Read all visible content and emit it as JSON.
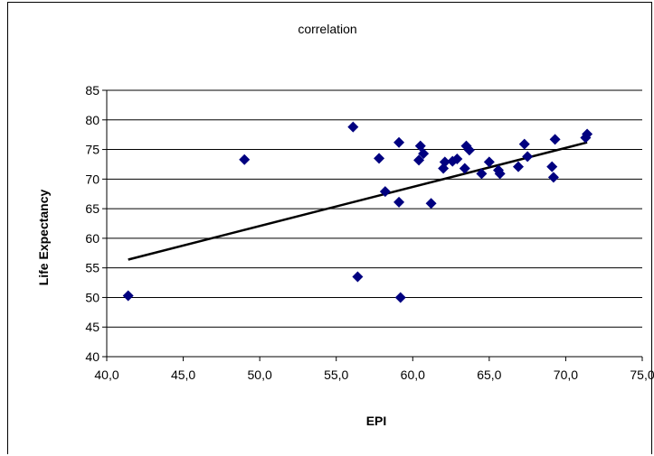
{
  "chart_data": {
    "type": "scatter",
    "title": "correlation",
    "xlabel": "EPI",
    "ylabel": "Life Expectancy",
    "xlim": [
      40,
      75
    ],
    "ylim": [
      40,
      85
    ],
    "x_ticks": [
      "40,0",
      "45,0",
      "50,0",
      "55,0",
      "60,0",
      "65,0",
      "70,0",
      "75,0"
    ],
    "y_ticks": [
      "40",
      "45",
      "50",
      "55",
      "60",
      "65",
      "70",
      "75",
      "80",
      "85"
    ],
    "grid": "horizontal",
    "legend": "none",
    "colors": {
      "marker": "#000080",
      "trendline": "#000000",
      "grid": "#000000"
    },
    "series": [
      {
        "values": [
          [
            41.4,
            50.3
          ],
          [
            49.0,
            73.3
          ],
          [
            56.1,
            78.8
          ],
          [
            56.4,
            53.5
          ],
          [
            57.8,
            73.5
          ],
          [
            58.2,
            67.9
          ],
          [
            59.1,
            76.2
          ],
          [
            59.1,
            66.1
          ],
          [
            59.2,
            50.0
          ],
          [
            60.4,
            73.2
          ],
          [
            60.5,
            75.6
          ],
          [
            60.7,
            74.3
          ],
          [
            61.2,
            65.9
          ],
          [
            62.0,
            71.8
          ],
          [
            62.1,
            72.9
          ],
          [
            62.6,
            73.0
          ],
          [
            62.9,
            73.4
          ],
          [
            63.4,
            71.8
          ],
          [
            63.5,
            75.6
          ],
          [
            63.7,
            74.9
          ],
          [
            64.5,
            70.9
          ],
          [
            65.0,
            72.9
          ],
          [
            65.6,
            71.5
          ],
          [
            65.7,
            70.9
          ],
          [
            66.9,
            72.1
          ],
          [
            67.3,
            75.9
          ],
          [
            67.5,
            73.8
          ],
          [
            69.1,
            72.1
          ],
          [
            69.2,
            70.3
          ],
          [
            69.3,
            76.7
          ],
          [
            71.3,
            77.0
          ],
          [
            71.4,
            77.6
          ]
        ]
      }
    ],
    "trendline": {
      "type": "linear",
      "from": [
        41.4,
        56.4
      ],
      "to": [
        71.4,
        76.2
      ]
    }
  }
}
